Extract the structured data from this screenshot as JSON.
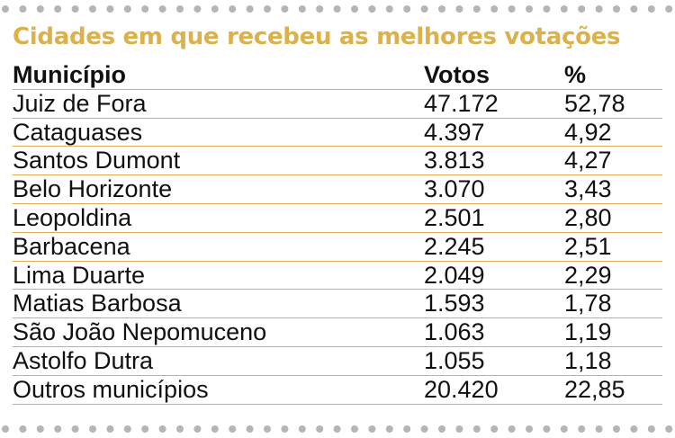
{
  "title": "Cidades em que recebeu as melhores votações",
  "colors": {
    "title": "#dcb04a",
    "rule": "#dcb04a",
    "dots": "#b5b5b5",
    "text": "#111111"
  },
  "table": {
    "headers": {
      "municipio": "Município",
      "votos": "Votos",
      "percent": "%"
    },
    "rows": [
      {
        "municipio": "Juiz de Fora",
        "votos": "47.172",
        "percent": "52,78"
      },
      {
        "municipio": "Cataguases",
        "votos": "4.397",
        "percent": "4,92"
      },
      {
        "municipio": "Santos Dumont",
        "votos": "3.813",
        "percent": "4,27"
      },
      {
        "municipio": "Belo Horizonte",
        "votos": "3.070",
        "percent": "3,43"
      },
      {
        "municipio": "Leopoldina",
        "votos": "2.501",
        "percent": "2,80"
      },
      {
        "municipio": "Barbacena",
        "votos": "2.245",
        "percent": "2,51"
      },
      {
        "municipio": "Lima Duarte",
        "votos": "2.049",
        "percent": "2,29"
      },
      {
        "municipio": "Matias Barbosa",
        "votos": "1.593",
        "percent": "1,78"
      },
      {
        "municipio": "São João Nepomuceno",
        "votos": "1.063",
        "percent": "1,19"
      },
      {
        "municipio": "Astolfo Dutra",
        "votos": "1.055",
        "percent": "1,18"
      },
      {
        "municipio": "Outros municípios",
        "votos": "20.420",
        "percent": "22,85"
      }
    ]
  }
}
